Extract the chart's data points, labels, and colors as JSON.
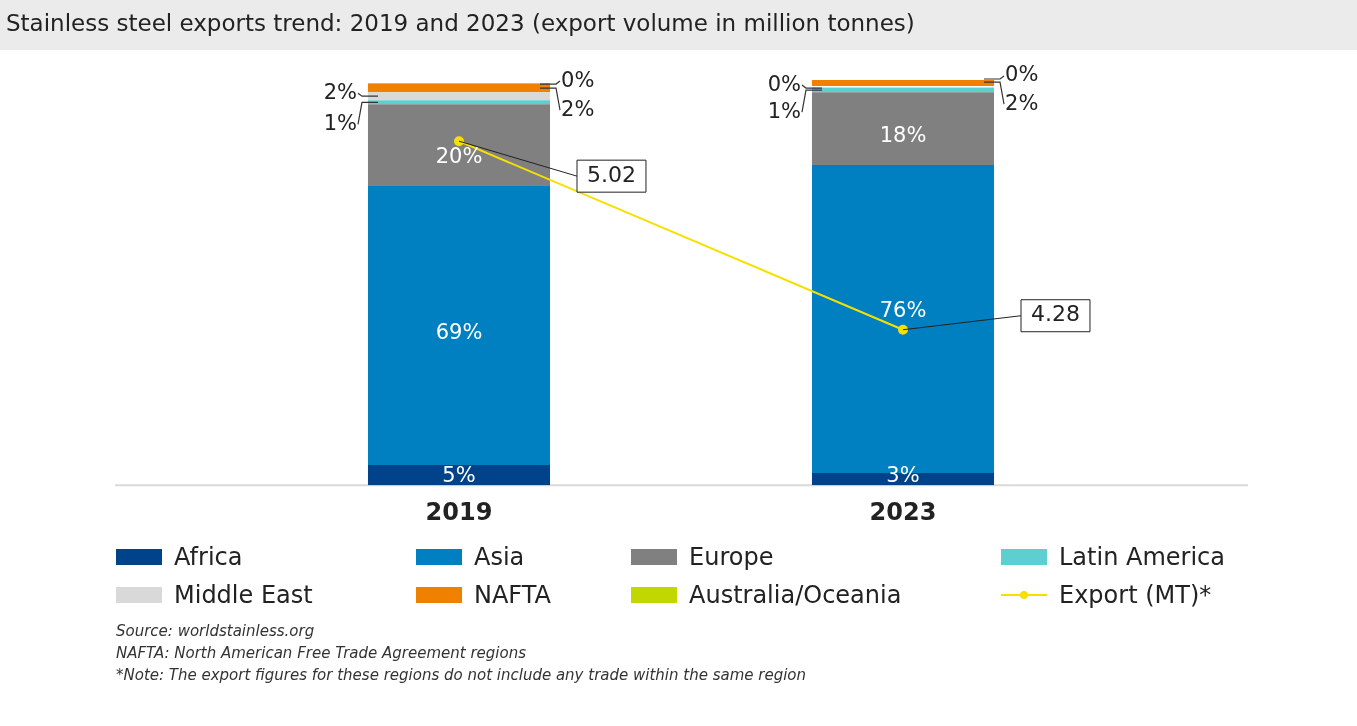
{
  "chart_data": {
    "type": "bar",
    "title": "Stainless steel exports trend: 2019 and 2023 (export volume in million tonnes)",
    "categories": [
      "2019",
      "2023"
    ],
    "stacked": true,
    "ylim": [
      0,
      100
    ],
    "y2lim": [
      3.67,
      5.26
    ],
    "tick_labels": "x",
    "grid": false,
    "legend": "bottom",
    "data_labels": true,
    "series": [
      {
        "name": "Africa",
        "color": "#00438a",
        "values": [
          5,
          3
        ],
        "value_labels": [
          "5%",
          "3%"
        ]
      },
      {
        "name": "Asia",
        "color": "#0080c0",
        "values": [
          69,
          76
        ],
        "value_labels": [
          "69%",
          "76%"
        ]
      },
      {
        "name": "Europe",
        "color": "#808080",
        "values": [
          20,
          18
        ],
        "value_labels": [
          "20%",
          "18%"
        ]
      },
      {
        "name": "Latin America",
        "color": "#5ecfd0",
        "values": [
          1,
          1
        ],
        "value_labels": [
          "1%",
          "1%"
        ]
      },
      {
        "name": "Middle East",
        "color": "#d9d9d9",
        "values": [
          2,
          0
        ],
        "value_labels": [
          "2%",
          "0%"
        ]
      },
      {
        "name": "NAFTA",
        "color": "#f08000",
        "values": [
          2,
          2
        ],
        "value_labels": [
          "2%",
          "2%"
        ]
      },
      {
        "name": "Australia/Oceania",
        "color": "#c0d800",
        "values": [
          0,
          0
        ],
        "value_labels": [
          "0%",
          "0%"
        ]
      },
      {
        "name": "Export (MT)*",
        "type": "line",
        "axis": "y2",
        "color": "#f5e000",
        "marker": "circle",
        "values": [
          5.02,
          4.28
        ],
        "value_labels": [
          "5.02",
          "4.28"
        ]
      }
    ],
    "annotations": [
      "Source: worldstainless.org",
      "NAFTA: North American Free Trade Agreement regions",
      "*Note: The export figures for these regions do not include any trade within the same region"
    ]
  }
}
